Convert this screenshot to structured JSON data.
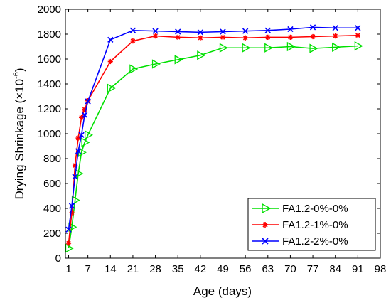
{
  "chart_data": {
    "type": "line",
    "title": "",
    "xlabel": "Age (days)",
    "ylabel": "Drying Shrinkage (×10",
    "ylabel_exponent": "-6",
    "ylabel_suffix": ")",
    "xlim": [
      0,
      98
    ],
    "ylim": [
      0,
      2000
    ],
    "xticks": [
      1,
      7,
      14,
      21,
      28,
      35,
      42,
      49,
      56,
      63,
      70,
      77,
      84,
      91,
      98
    ],
    "yticks": [
      0,
      200,
      400,
      600,
      800,
      1000,
      1200,
      1400,
      1600,
      1800,
      2000
    ],
    "grid": false,
    "legend_position": "bottom-right",
    "series": [
      {
        "name": "FA1.2-0%-0%",
        "color": "#00e000",
        "marker": "triangle-right",
        "x": [
          1,
          2,
          3,
          4,
          5,
          6,
          7,
          14,
          21,
          28,
          35,
          42,
          49,
          56,
          63,
          70,
          77,
          84,
          91
        ],
        "y": [
          80,
          250,
          465,
          680,
          850,
          930,
          990,
          1365,
          1520,
          1560,
          1595,
          1630,
          1690,
          1690,
          1690,
          1700,
          1685,
          1695,
          1705
        ]
      },
      {
        "name": "FA1.2-1%-0%",
        "color": "#ff0000",
        "marker": "asterisk",
        "x": [
          1,
          2,
          3,
          4,
          5,
          6,
          7,
          14,
          21,
          28,
          35,
          42,
          49,
          56,
          63,
          70,
          77,
          84,
          91
        ],
        "y": [
          120,
          365,
          745,
          965,
          1130,
          1195,
          1265,
          1580,
          1745,
          1785,
          1775,
          1770,
          1775,
          1770,
          1775,
          1775,
          1780,
          1785,
          1790
        ]
      },
      {
        "name": "FA1.2-2%-0%",
        "color": "#0000ff",
        "marker": "x",
        "x": [
          1,
          2,
          3,
          4,
          5,
          6,
          7,
          14,
          21,
          28,
          35,
          42,
          49,
          56,
          63,
          70,
          77,
          84,
          91
        ],
        "y": [
          230,
          420,
          655,
          860,
          990,
          1150,
          1260,
          1755,
          1830,
          1825,
          1820,
          1815,
          1820,
          1825,
          1830,
          1840,
          1855,
          1850,
          1850
        ]
      }
    ]
  }
}
